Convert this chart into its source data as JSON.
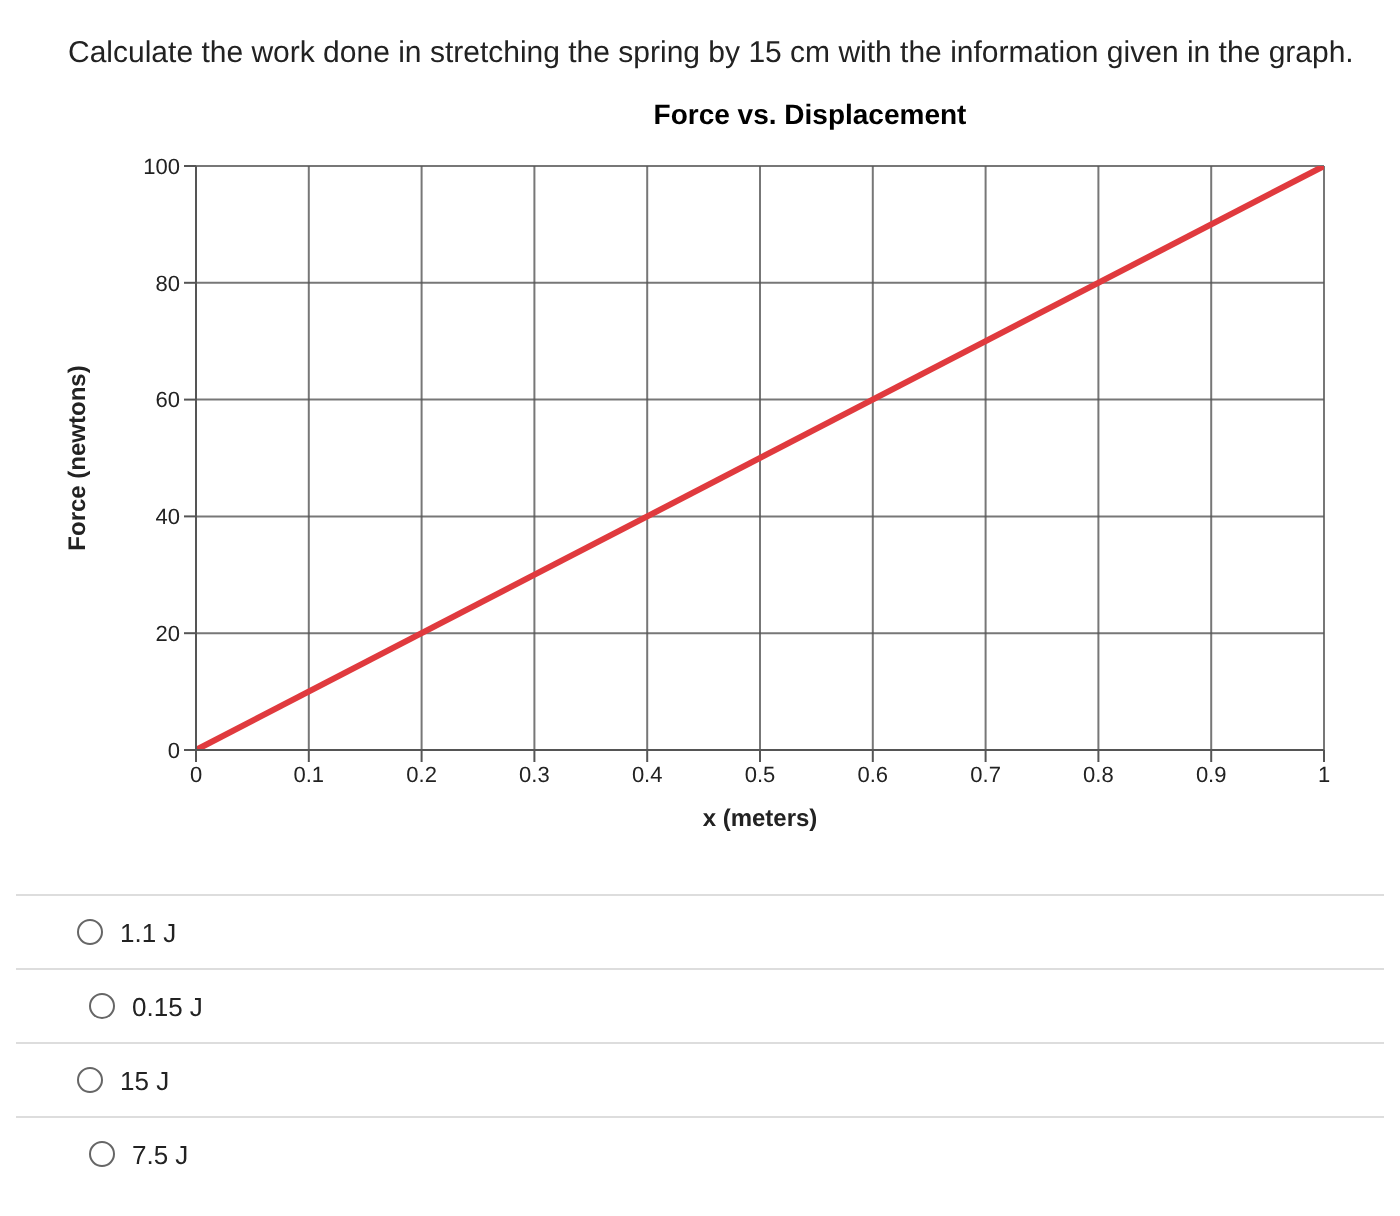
{
  "chart_data": {
    "type": "line",
    "title": "Force vs. Displacement",
    "xlabel": "x (meters)",
    "ylabel": "Force (newtons)",
    "annotations": [
      "Calculate the work done in stretching the spring by 15 cm with the information given in the graph.",
      "1.1 J",
      "0.15 J",
      "15 J",
      "7.5 J"
    ],
    "x": [
      0,
      1
    ],
    "series": [
      {
        "color": "#e03a3e",
        "values": [
          0,
          100
        ]
      }
    ],
    "xlim": [
      0,
      1
    ],
    "xticks": [
      0,
      0.1,
      0.2,
      0.3,
      0.4,
      0.5,
      0.6,
      0.7,
      0.8,
      0.9,
      1
    ],
    "ylim": [
      0,
      100
    ],
    "yticks": [
      0,
      20,
      40,
      60,
      80,
      100
    ],
    "grid": true,
    "marker": "none",
    "line_style": "solid"
  }
}
